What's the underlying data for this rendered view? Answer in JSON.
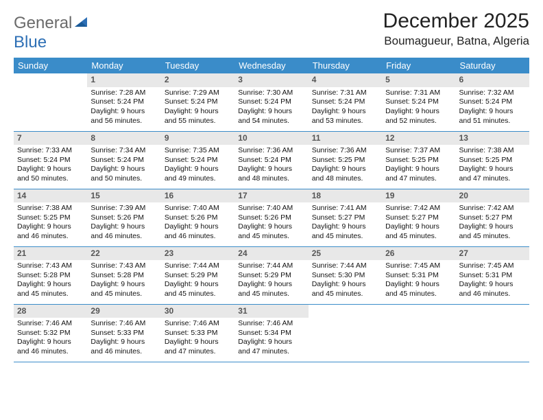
{
  "logo": {
    "word1": "General",
    "word2": "Blue"
  },
  "title": "December 2025",
  "location": "Boumagueur, Batna, Algeria",
  "header_bg": "#3a8cc9",
  "daynum_bg": "#e8e8e8",
  "border_color": "#3a8cc9",
  "weekdays": [
    "Sunday",
    "Monday",
    "Tuesday",
    "Wednesday",
    "Thursday",
    "Friday",
    "Saturday"
  ],
  "first_weekday_index": 1,
  "days": [
    {
      "n": 1,
      "sunrise": "7:28 AM",
      "sunset": "5:24 PM",
      "daylight": "9 hours and 56 minutes."
    },
    {
      "n": 2,
      "sunrise": "7:29 AM",
      "sunset": "5:24 PM",
      "daylight": "9 hours and 55 minutes."
    },
    {
      "n": 3,
      "sunrise": "7:30 AM",
      "sunset": "5:24 PM",
      "daylight": "9 hours and 54 minutes."
    },
    {
      "n": 4,
      "sunrise": "7:31 AM",
      "sunset": "5:24 PM",
      "daylight": "9 hours and 53 minutes."
    },
    {
      "n": 5,
      "sunrise": "7:31 AM",
      "sunset": "5:24 PM",
      "daylight": "9 hours and 52 minutes."
    },
    {
      "n": 6,
      "sunrise": "7:32 AM",
      "sunset": "5:24 PM",
      "daylight": "9 hours and 51 minutes."
    },
    {
      "n": 7,
      "sunrise": "7:33 AM",
      "sunset": "5:24 PM",
      "daylight": "9 hours and 50 minutes."
    },
    {
      "n": 8,
      "sunrise": "7:34 AM",
      "sunset": "5:24 PM",
      "daylight": "9 hours and 50 minutes."
    },
    {
      "n": 9,
      "sunrise": "7:35 AM",
      "sunset": "5:24 PM",
      "daylight": "9 hours and 49 minutes."
    },
    {
      "n": 10,
      "sunrise": "7:36 AM",
      "sunset": "5:24 PM",
      "daylight": "9 hours and 48 minutes."
    },
    {
      "n": 11,
      "sunrise": "7:36 AM",
      "sunset": "5:25 PM",
      "daylight": "9 hours and 48 minutes."
    },
    {
      "n": 12,
      "sunrise": "7:37 AM",
      "sunset": "5:25 PM",
      "daylight": "9 hours and 47 minutes."
    },
    {
      "n": 13,
      "sunrise": "7:38 AM",
      "sunset": "5:25 PM",
      "daylight": "9 hours and 47 minutes."
    },
    {
      "n": 14,
      "sunrise": "7:38 AM",
      "sunset": "5:25 PM",
      "daylight": "9 hours and 46 minutes."
    },
    {
      "n": 15,
      "sunrise": "7:39 AM",
      "sunset": "5:26 PM",
      "daylight": "9 hours and 46 minutes."
    },
    {
      "n": 16,
      "sunrise": "7:40 AM",
      "sunset": "5:26 PM",
      "daylight": "9 hours and 46 minutes."
    },
    {
      "n": 17,
      "sunrise": "7:40 AM",
      "sunset": "5:26 PM",
      "daylight": "9 hours and 45 minutes."
    },
    {
      "n": 18,
      "sunrise": "7:41 AM",
      "sunset": "5:27 PM",
      "daylight": "9 hours and 45 minutes."
    },
    {
      "n": 19,
      "sunrise": "7:42 AM",
      "sunset": "5:27 PM",
      "daylight": "9 hours and 45 minutes."
    },
    {
      "n": 20,
      "sunrise": "7:42 AM",
      "sunset": "5:27 PM",
      "daylight": "9 hours and 45 minutes."
    },
    {
      "n": 21,
      "sunrise": "7:43 AM",
      "sunset": "5:28 PM",
      "daylight": "9 hours and 45 minutes."
    },
    {
      "n": 22,
      "sunrise": "7:43 AM",
      "sunset": "5:28 PM",
      "daylight": "9 hours and 45 minutes."
    },
    {
      "n": 23,
      "sunrise": "7:44 AM",
      "sunset": "5:29 PM",
      "daylight": "9 hours and 45 minutes."
    },
    {
      "n": 24,
      "sunrise": "7:44 AM",
      "sunset": "5:29 PM",
      "daylight": "9 hours and 45 minutes."
    },
    {
      "n": 25,
      "sunrise": "7:44 AM",
      "sunset": "5:30 PM",
      "daylight": "9 hours and 45 minutes."
    },
    {
      "n": 26,
      "sunrise": "7:45 AM",
      "sunset": "5:31 PM",
      "daylight": "9 hours and 45 minutes."
    },
    {
      "n": 27,
      "sunrise": "7:45 AM",
      "sunset": "5:31 PM",
      "daylight": "9 hours and 46 minutes."
    },
    {
      "n": 28,
      "sunrise": "7:46 AM",
      "sunset": "5:32 PM",
      "daylight": "9 hours and 46 minutes."
    },
    {
      "n": 29,
      "sunrise": "7:46 AM",
      "sunset": "5:33 PM",
      "daylight": "9 hours and 46 minutes."
    },
    {
      "n": 30,
      "sunrise": "7:46 AM",
      "sunset": "5:33 PM",
      "daylight": "9 hours and 47 minutes."
    },
    {
      "n": 31,
      "sunrise": "7:46 AM",
      "sunset": "5:34 PM",
      "daylight": "9 hours and 47 minutes."
    }
  ],
  "labels": {
    "sunrise": "Sunrise:",
    "sunset": "Sunset:",
    "daylight": "Daylight:"
  }
}
